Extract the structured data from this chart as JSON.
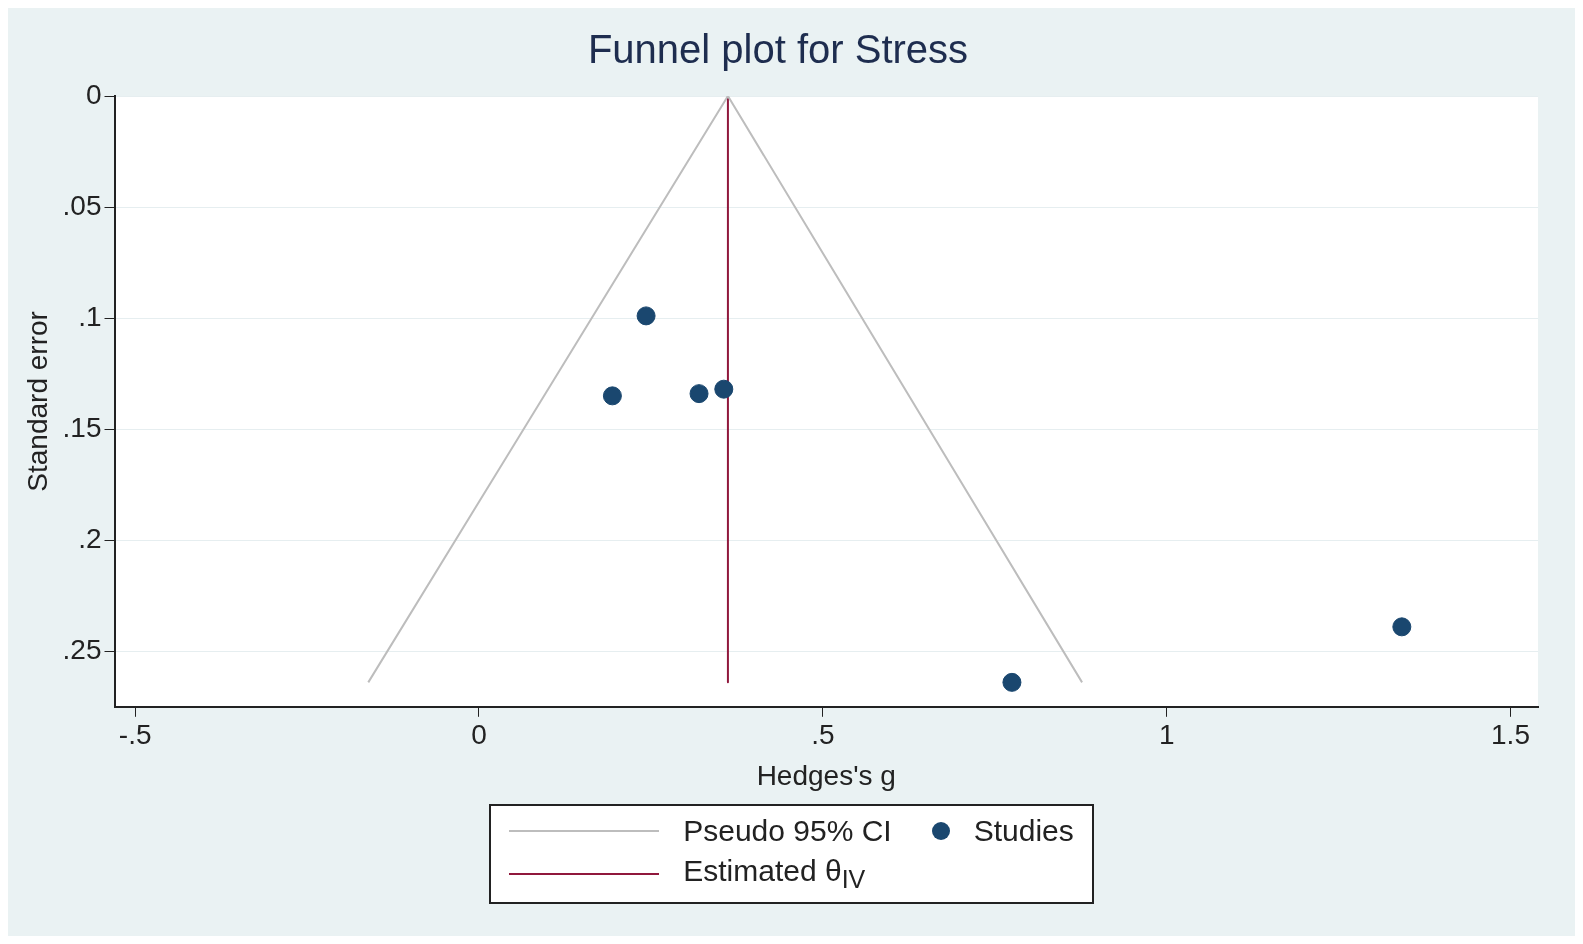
{
  "chart_data": {
    "type": "scatter",
    "title": "Funnel plot for Stress",
    "xlabel": "Hedges's g",
    "ylabel": "Standard error",
    "xlim": [
      -0.53,
      1.54
    ],
    "ylim": [
      0.275,
      0
    ],
    "xticks": [
      {
        "value": -0.5,
        "label": "-.5"
      },
      0,
      {
        "value": 0.5,
        "label": ".5"
      },
      1,
      1.5
    ],
    "yticks": [
      0,
      {
        "value": 0.05,
        "label": ".05"
      },
      {
        "value": 0.1,
        "label": ".1"
      },
      {
        "value": 0.15,
        "label": ".15"
      },
      {
        "value": 0.2,
        "label": ".2"
      },
      {
        "value": 0.25,
        "label": ".25"
      }
    ],
    "grid": "y",
    "legend": "bottom",
    "series": [
      {
        "name": "Pseudo 95% CI",
        "type": "line",
        "color": "#bdbdbd",
        "marker": "none",
        "x": [
          -0.161,
          0.362,
          0.877
        ],
        "values": [
          0.264,
          0,
          0.264
        ]
      },
      {
        "name": "Studies",
        "type": "scatter",
        "color": "#1a476f",
        "marker": "circle",
        "x": [
          0.243,
          0.194,
          0.32,
          0.356,
          0.775,
          1.342
        ],
        "values": [
          0.099,
          0.135,
          0.134,
          0.132,
          0.264,
          0.239
        ]
      },
      {
        "name": "Estimated θ$_{IV}$",
        "type": "line",
        "color": "#90183c",
        "marker": "none",
        "x": [
          0.362,
          0.362
        ],
        "values": [
          0,
          0.264
        ]
      }
    ]
  }
}
